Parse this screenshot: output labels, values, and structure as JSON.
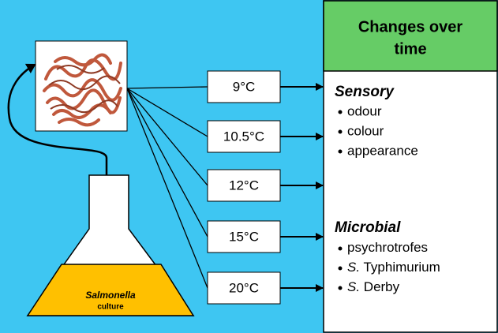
{
  "header": {
    "title_line1": "Changes over",
    "title_line2": "time"
  },
  "temperatures": [
    "9°C",
    "10.5°C",
    "12°C",
    "15°C",
    "20°C"
  ],
  "flask": {
    "organism": "Salmonella",
    "label": "culture"
  },
  "sensory": {
    "title": "Sensory",
    "items": [
      "odour",
      "colour",
      "appearance"
    ]
  },
  "microbial": {
    "title": "Microbial",
    "items": [
      {
        "genus": "",
        "name": "psychrotrofes"
      },
      {
        "genus": "S.",
        "name": " Typhimurium"
      },
      {
        "genus": "S.",
        "name": " Derby"
      }
    ]
  }
}
